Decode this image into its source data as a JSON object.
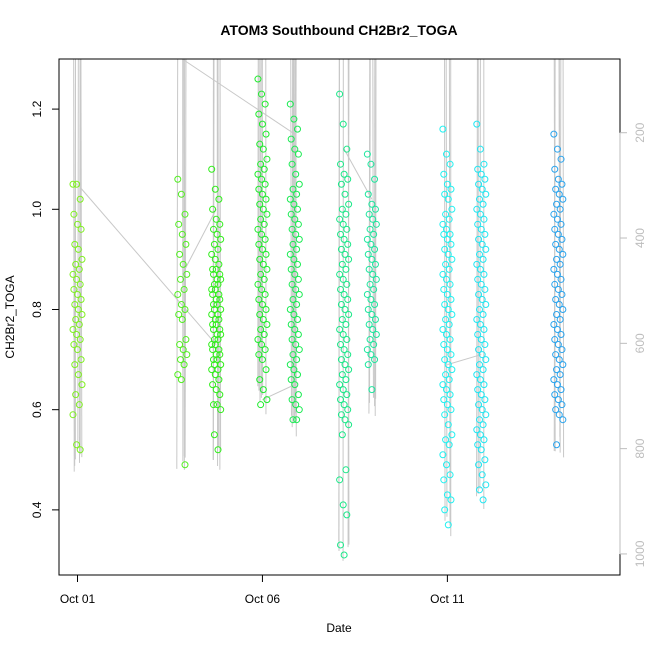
{
  "chart_data": {
    "type": "scatter",
    "title": "ATOM3 Southbound CH2Br2_TOGA",
    "xlabel": "Date",
    "ylabel": "CH2Br2_TOGA",
    "x_axis": {
      "type": "date",
      "range": [
        "2017-09-30T12:00",
        "2017-10-15T16:00"
      ],
      "ticks": [
        {
          "value": "2017-10-01",
          "label": "Oct 01"
        },
        {
          "value": "2017-10-06",
          "label": "Oct 06"
        },
        {
          "value": "2017-10-11",
          "label": "Oct 11"
        }
      ]
    },
    "y_axis": {
      "range": [
        0.27,
        1.3
      ],
      "ticks": [
        {
          "value": 0.4,
          "label": "0.4"
        },
        {
          "value": 0.6,
          "label": "0.6"
        },
        {
          "value": 0.8,
          "label": "0.8"
        },
        {
          "value": 1.0,
          "label": "1.0"
        },
        {
          "value": 1.2,
          "label": "1.2"
        }
      ]
    },
    "y2_axis": {
      "side": "right",
      "note": "secondary axis drawn in light gray for the profile trace",
      "range": [
        1040,
        60
      ],
      "ticks": [
        {
          "value": 200,
          "label": "200"
        },
        {
          "value": 400,
          "label": "400"
        },
        {
          "value": 600,
          "label": "600"
        },
        {
          "value": 800,
          "label": "800"
        },
        {
          "value": 1000,
          "label": "1000"
        }
      ]
    },
    "grid": false,
    "marker": "open circle",
    "color_scale": "point color varies with date: yellow-green (Oct 01) through green and cyan to blue (Oct 15)",
    "trace_color": "#c8c8c8",
    "clusters": [
      {
        "date": "2017-10-01T00:00",
        "color": "#7ff021",
        "values": [
          1.05,
          1.05,
          1.02,
          0.99,
          0.97,
          0.96,
          0.93,
          0.92,
          0.9,
          0.89,
          0.88,
          0.87,
          0.86,
          0.85,
          0.84,
          0.83,
          0.82,
          0.81,
          0.8,
          0.79,
          0.78,
          0.77,
          0.76,
          0.75,
          0.74,
          0.73,
          0.72,
          0.7,
          0.69,
          0.67,
          0.65,
          0.63,
          0.61,
          0.59,
          0.53,
          0.52
        ]
      },
      {
        "date": "2017-10-03T20:00",
        "color": "#52ef21",
        "values": [
          1.06,
          1.03,
          0.99,
          0.97,
          0.95,
          0.93,
          0.91,
          0.89,
          0.87,
          0.86,
          0.84,
          0.83,
          0.81,
          0.8,
          0.79,
          0.78,
          0.74,
          0.73,
          0.72,
          0.71,
          0.7,
          0.69,
          0.67,
          0.66,
          0.49
        ]
      },
      {
        "date": "2017-10-04T18:00",
        "color": "#30ee1a",
        "values": [
          1.08,
          1.04,
          1.02,
          1.0,
          0.98,
          0.97,
          0.96,
          0.95,
          0.94,
          0.93,
          0.92,
          0.91,
          0.9,
          0.89,
          0.88,
          0.88,
          0.87,
          0.87,
          0.86,
          0.86,
          0.85,
          0.85,
          0.84,
          0.84,
          0.83,
          0.83,
          0.82,
          0.82,
          0.81,
          0.81,
          0.8,
          0.8,
          0.79,
          0.79,
          0.78,
          0.78,
          0.77,
          0.77,
          0.76,
          0.76,
          0.75,
          0.75,
          0.74,
          0.74,
          0.73,
          0.73,
          0.72,
          0.72,
          0.71,
          0.71,
          0.7,
          0.7,
          0.69,
          0.69,
          0.68,
          0.68,
          0.67,
          0.66,
          0.65,
          0.64,
          0.63,
          0.61,
          0.61,
          0.6,
          0.55,
          0.52
        ]
      },
      {
        "date": "2017-10-06T00:00",
        "color": "#1eec2c",
        "values": [
          1.26,
          1.23,
          1.21,
          1.19,
          1.17,
          1.15,
          1.13,
          1.12,
          1.1,
          1.09,
          1.08,
          1.07,
          1.06,
          1.05,
          1.04,
          1.03,
          1.02,
          1.01,
          1.0,
          0.99,
          0.98,
          0.97,
          0.96,
          0.95,
          0.94,
          0.93,
          0.92,
          0.91,
          0.9,
          0.89,
          0.88,
          0.87,
          0.86,
          0.85,
          0.84,
          0.83,
          0.82,
          0.81,
          0.8,
          0.79,
          0.78,
          0.77,
          0.76,
          0.75,
          0.74,
          0.73,
          0.72,
          0.71,
          0.7,
          0.68,
          0.66,
          0.64,
          0.62,
          0.61
        ]
      },
      {
        "date": "2017-10-06T21:00",
        "color": "#1aeb52",
        "values": [
          1.21,
          1.18,
          1.16,
          1.14,
          1.12,
          1.11,
          1.09,
          1.07,
          1.05,
          1.04,
          1.03,
          1.02,
          1.01,
          1.0,
          0.99,
          0.98,
          0.97,
          0.96,
          0.95,
          0.94,
          0.93,
          0.92,
          0.91,
          0.9,
          0.89,
          0.88,
          0.87,
          0.86,
          0.85,
          0.84,
          0.83,
          0.82,
          0.81,
          0.8,
          0.79,
          0.78,
          0.77,
          0.76,
          0.75,
          0.74,
          0.73,
          0.72,
          0.71,
          0.7,
          0.69,
          0.68,
          0.67,
          0.66,
          0.65,
          0.63,
          0.62,
          0.61,
          0.6,
          0.58,
          0.58
        ]
      },
      {
        "date": "2017-10-08T05:00",
        "color": "#1ae888",
        "values": [
          1.23,
          1.17,
          1.12,
          1.09,
          1.07,
          1.06,
          1.05,
          1.03,
          1.01,
          1.0,
          0.99,
          0.98,
          0.97,
          0.96,
          0.95,
          0.94,
          0.93,
          0.92,
          0.91,
          0.9,
          0.89,
          0.88,
          0.87,
          0.86,
          0.85,
          0.84,
          0.83,
          0.82,
          0.81,
          0.8,
          0.79,
          0.78,
          0.77,
          0.76,
          0.75,
          0.74,
          0.73,
          0.72,
          0.71,
          0.7,
          0.69,
          0.68,
          0.67,
          0.66,
          0.65,
          0.64,
          0.63,
          0.62,
          0.61,
          0.6,
          0.59,
          0.58,
          0.57,
          0.55,
          0.48,
          0.46,
          0.41,
          0.39,
          0.33,
          0.31
        ]
      },
      {
        "date": "2017-10-08T23:00",
        "color": "#1ee69e",
        "values": [
          1.11,
          1.09,
          1.06,
          1.03,
          1.01,
          1.0,
          0.99,
          0.98,
          0.97,
          0.96,
          0.95,
          0.94,
          0.93,
          0.92,
          0.91,
          0.9,
          0.89,
          0.88,
          0.87,
          0.86,
          0.85,
          0.84,
          0.83,
          0.82,
          0.81,
          0.8,
          0.79,
          0.78,
          0.77,
          0.76,
          0.75,
          0.74,
          0.73,
          0.72,
          0.71,
          0.7,
          0.69,
          0.64
        ]
      },
      {
        "date": "2017-10-11T00:00",
        "color": "#21f0f0",
        "values": [
          1.16,
          1.11,
          1.09,
          1.07,
          1.05,
          1.04,
          1.03,
          1.02,
          1.0,
          0.99,
          0.98,
          0.97,
          0.96,
          0.95,
          0.95,
          0.94,
          0.93,
          0.92,
          0.91,
          0.9,
          0.89,
          0.88,
          0.87,
          0.86,
          0.85,
          0.84,
          0.83,
          0.82,
          0.81,
          0.8,
          0.79,
          0.78,
          0.77,
          0.76,
          0.75,
          0.74,
          0.73,
          0.72,
          0.71,
          0.7,
          0.69,
          0.68,
          0.67,
          0.66,
          0.65,
          0.64,
          0.63,
          0.62,
          0.61,
          0.6,
          0.59,
          0.57,
          0.55,
          0.54,
          0.53,
          0.51,
          0.49,
          0.47,
          0.46,
          0.43,
          0.42,
          0.4,
          0.37
        ]
      },
      {
        "date": "2017-10-11T22:00",
        "color": "#21e6f2",
        "values": [
          1.17,
          1.12,
          1.09,
          1.08,
          1.07,
          1.06,
          1.05,
          1.04,
          1.03,
          1.02,
          1.01,
          1.0,
          0.99,
          0.98,
          0.97,
          0.96,
          0.95,
          0.94,
          0.93,
          0.92,
          0.91,
          0.9,
          0.89,
          0.88,
          0.87,
          0.86,
          0.85,
          0.84,
          0.83,
          0.82,
          0.81,
          0.8,
          0.79,
          0.78,
          0.77,
          0.76,
          0.75,
          0.74,
          0.73,
          0.72,
          0.71,
          0.7,
          0.69,
          0.68,
          0.67,
          0.66,
          0.65,
          0.64,
          0.63,
          0.62,
          0.61,
          0.6,
          0.59,
          0.58,
          0.57,
          0.56,
          0.55,
          0.54,
          0.53,
          0.52,
          0.5,
          0.49,
          0.47,
          0.45,
          0.44,
          0.42
        ]
      },
      {
        "date": "2017-10-14T00:00",
        "color": "#2aa4ee",
        "values": [
          1.15,
          1.12,
          1.1,
          1.08,
          1.06,
          1.05,
          1.04,
          1.03,
          1.02,
          1.01,
          1.0,
          0.99,
          0.98,
          0.97,
          0.96,
          0.95,
          0.94,
          0.93,
          0.92,
          0.91,
          0.9,
          0.89,
          0.88,
          0.87,
          0.86,
          0.85,
          0.84,
          0.83,
          0.82,
          0.81,
          0.8,
          0.79,
          0.78,
          0.77,
          0.76,
          0.75,
          0.74,
          0.73,
          0.72,
          0.71,
          0.7,
          0.69,
          0.68,
          0.67,
          0.66,
          0.65,
          0.64,
          0.63,
          0.62,
          0.61,
          0.6,
          0.59,
          0.58,
          0.53
        ]
      }
    ]
  }
}
